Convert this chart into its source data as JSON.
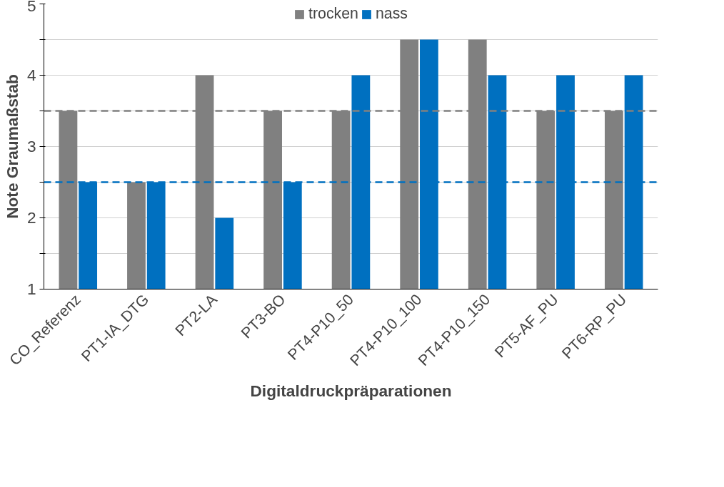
{
  "chart_data": {
    "type": "bar",
    "xlabel": "Digitaldruckpräparationen",
    "ylabel": "Note Graumaßstab",
    "categories": [
      "CO_Referenz",
      "PT1-IA_DTG",
      "PT2-LA",
      "PT3-BO",
      "PT4-P10_50",
      "PT4-P10_100",
      "PT4-P10_150",
      "PT5-AF_PU",
      "PT6-RP_PU"
    ],
    "series": [
      {
        "name": "trocken",
        "color": "#808080",
        "values": [
          3.5,
          2.5,
          4,
          3.5,
          3.5,
          4.5,
          4.5,
          3.5,
          3.5
        ]
      },
      {
        "name": "nass",
        "color": "#0070c0",
        "values": [
          2.5,
          2.5,
          2,
          2.5,
          4,
          4.5,
          4,
          4,
          4
        ]
      }
    ],
    "ylim": [
      1,
      5
    ],
    "yticks": [
      1,
      {
        "value": 1.5,
        "label": null
      },
      2,
      {
        "value": 2.5,
        "label": null
      },
      3,
      {
        "value": 3.5,
        "label": null
      },
      4,
      {
        "value": 4.5,
        "label": null
      },
      5
    ],
    "ref_lines": [
      {
        "axis": "y",
        "value": 3.5,
        "color": "#808080",
        "line_style": "dashed"
      },
      {
        "axis": "y",
        "value": 2.5,
        "color": "#0070c0",
        "line_style": "dashed"
      }
    ],
    "grid": "y",
    "legend": "top"
  }
}
